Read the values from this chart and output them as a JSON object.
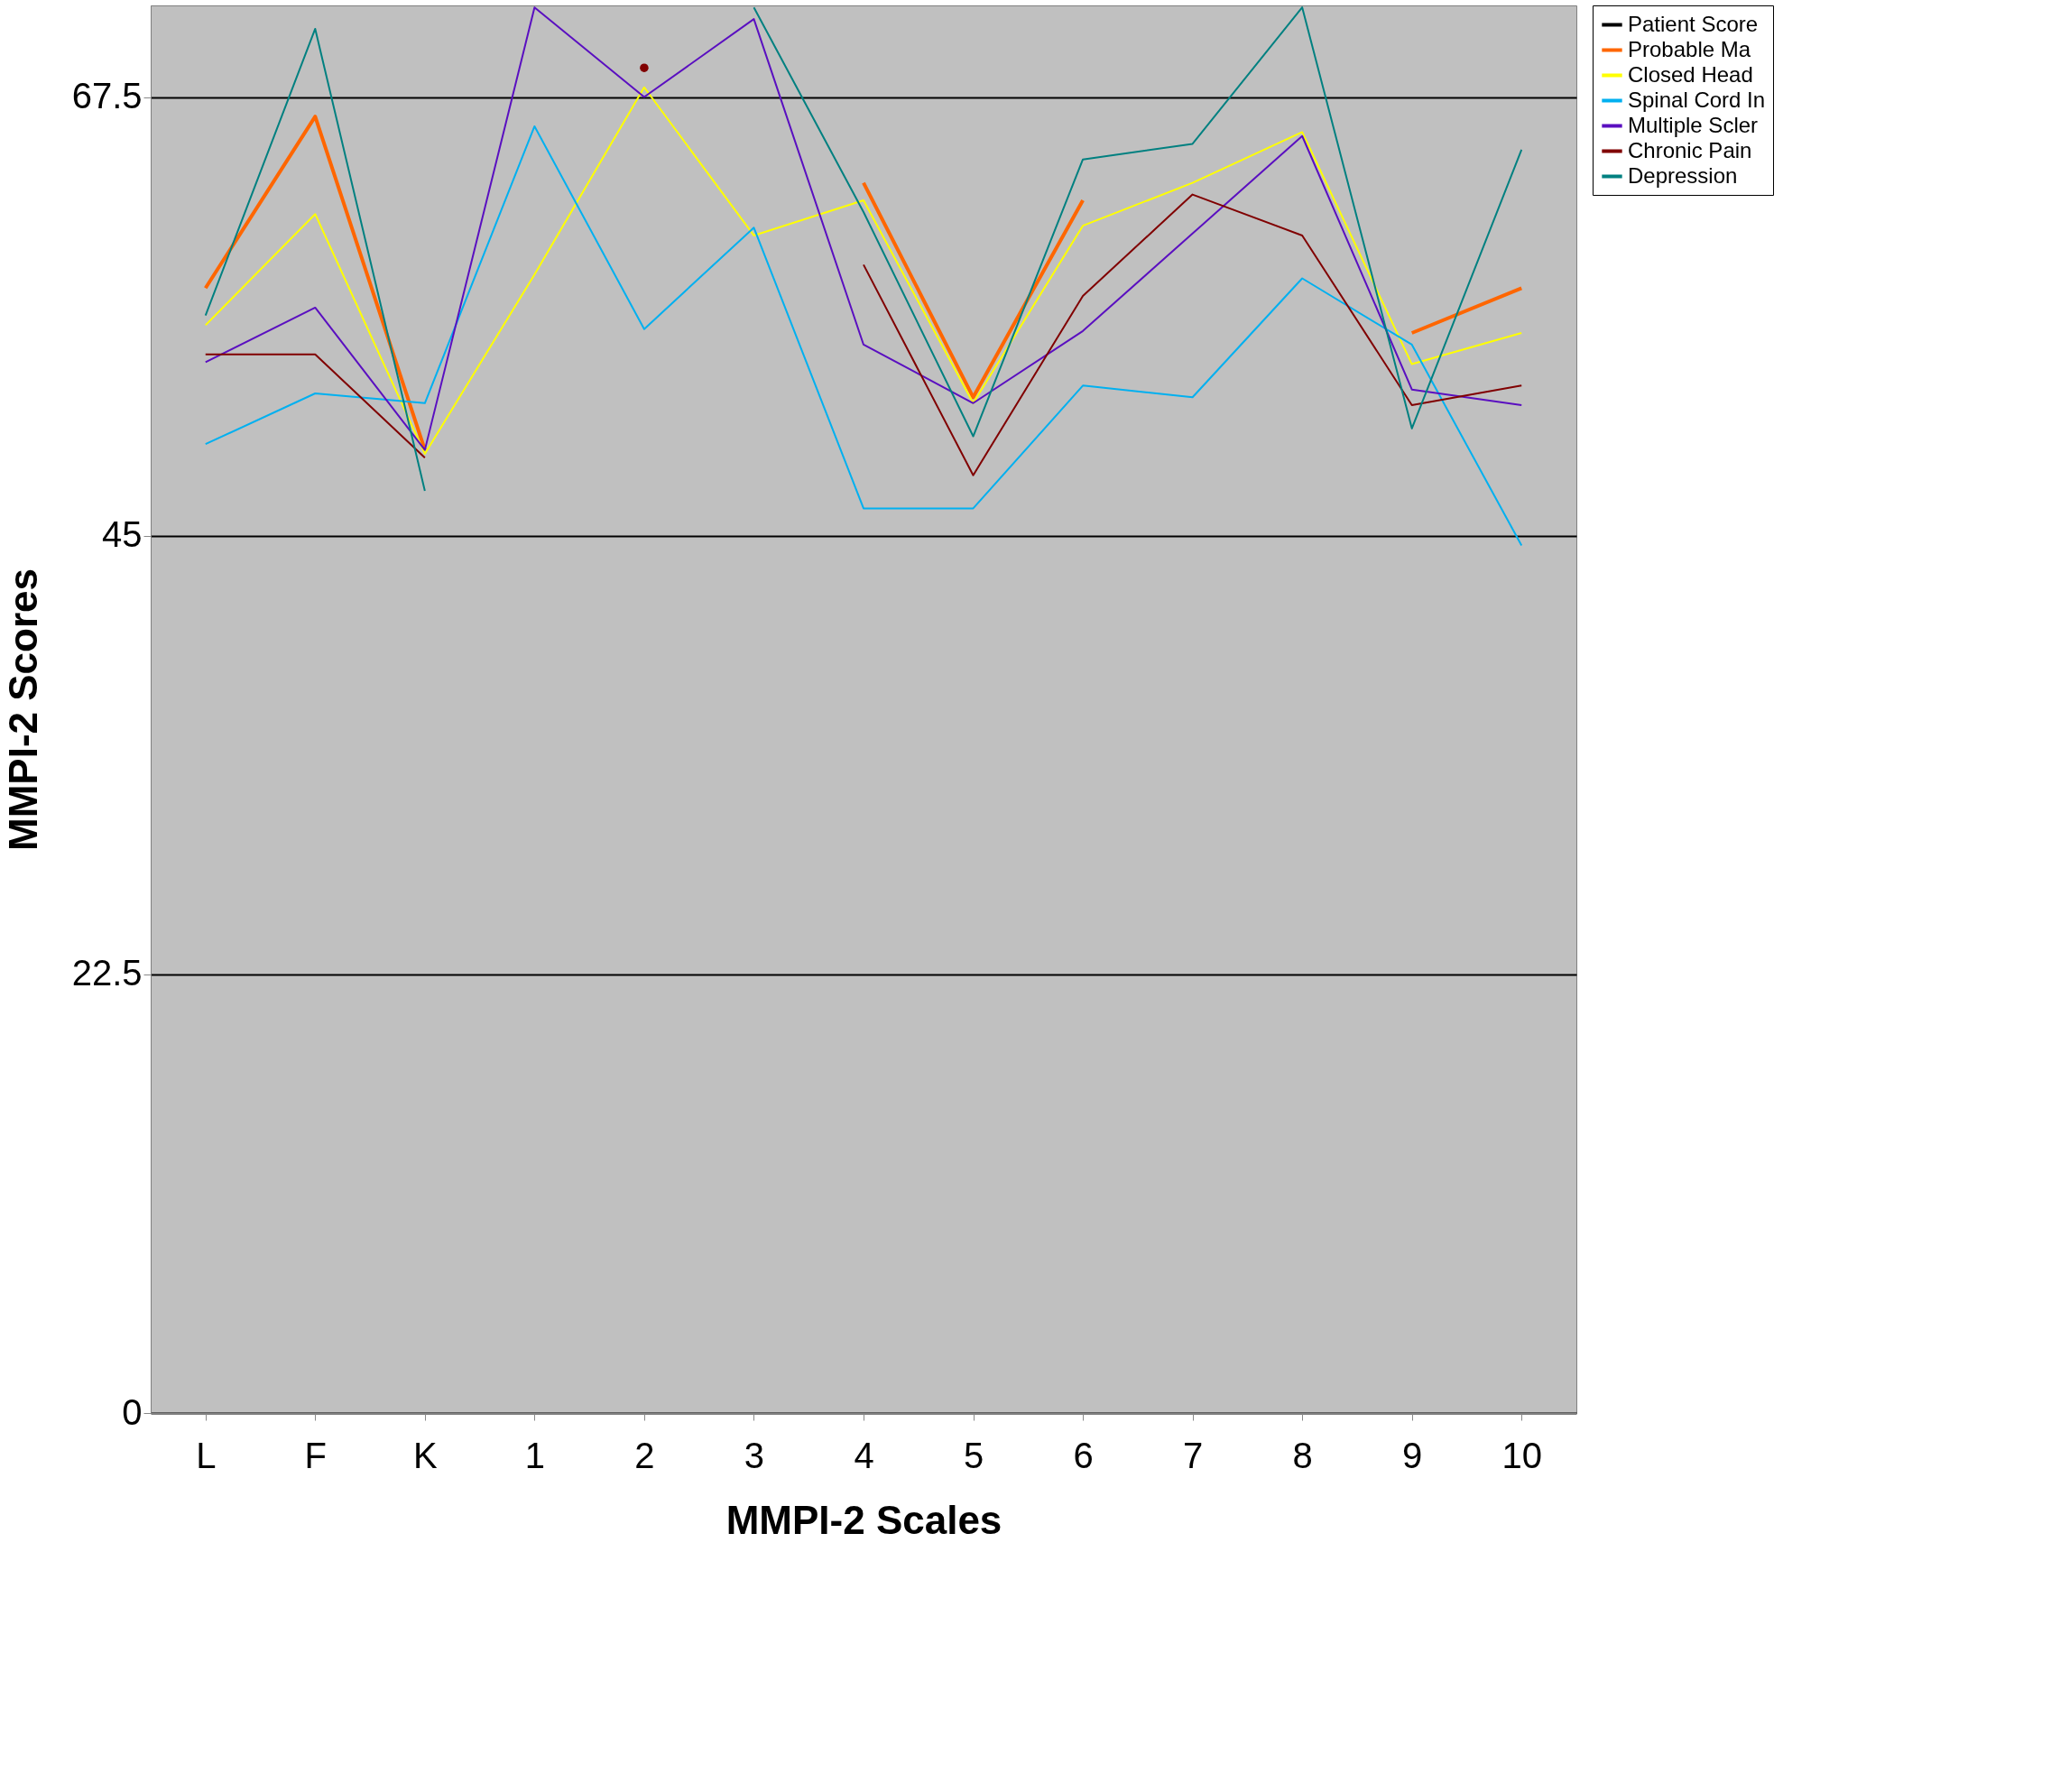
{
  "chart_data": {
    "type": "line",
    "xlabel": "MMPI-2 Scales",
    "ylabel": "MMPI-2 Scores",
    "categories": [
      "L",
      "F",
      "K",
      "1",
      "2",
      "3",
      "4",
      "5",
      "6",
      "7",
      "8",
      "9",
      "10"
    ],
    "ylim": [
      0,
      72.2
    ],
    "yticks": [
      0,
      22.5,
      45,
      67.5
    ],
    "grid": "y",
    "legend": "right",
    "series": [
      {
        "name": "Patient Score",
        "color": "#000000",
        "values": [
          null,
          null,
          null,
          null,
          null,
          null,
          null,
          null,
          null,
          null,
          null,
          null,
          null
        ]
      },
      {
        "name": "Probable  Ma",
        "color": "#ff6600",
        "values": [
          57.7,
          66.5,
          49.4,
          null,
          null,
          null,
          63.1,
          52.1,
          62.2,
          null,
          null,
          55.4,
          57.7
        ]
      },
      {
        "name": "Closed Head",
        "color": "#ffff00",
        "values": [
          55.8,
          61.5,
          49.2,
          58.4,
          68.0,
          60.4,
          62.2,
          51.8,
          60.9,
          63.1,
          65.7,
          53.8,
          55.4
        ]
      },
      {
        "name": "Spinal Cord In",
        "color": "#00b0f0",
        "values": [
          49.7,
          52.3,
          51.8,
          66.0,
          55.6,
          60.8,
          46.4,
          46.4,
          52.7,
          52.1,
          58.2,
          54.8,
          44.5
        ]
      },
      {
        "name": "Multiple Scler",
        "color": "#5a0fc0",
        "values": [
          53.9,
          56.7,
          49.4,
          72.1,
          67.5,
          71.5,
          54.8,
          51.8,
          55.5,
          60.5,
          65.5,
          52.5,
          51.7
        ]
      },
      {
        "name": "Chronic Pain",
        "color": "#800000",
        "values": [
          54.3,
          54.3,
          49.0,
          null,
          69.0,
          null,
          58.9,
          48.1,
          57.3,
          62.5,
          60.4,
          51.7,
          52.7
        ]
      },
      {
        "name": "Depression",
        "color": "#008080",
        "values": [
          56.3,
          71.0,
          47.3,
          null,
          null,
          72.1,
          61.6,
          50.1,
          64.3,
          65.1,
          72.1,
          50.5,
          64.8
        ]
      }
    ]
  }
}
